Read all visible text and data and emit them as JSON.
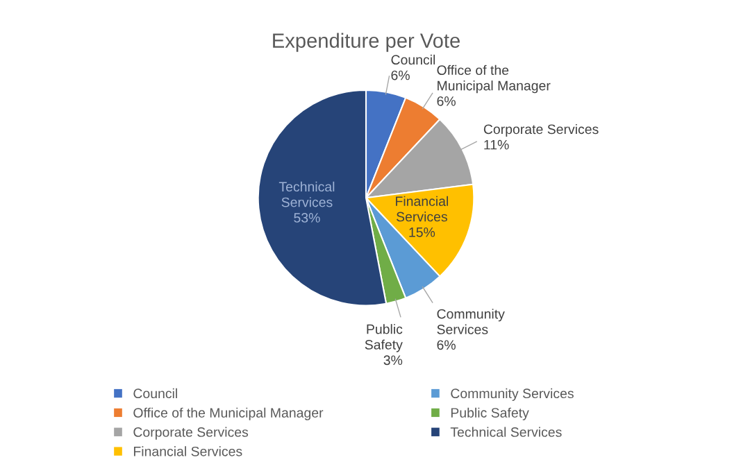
{
  "chart_data": {
    "type": "pie",
    "title": "Expenditure per Vote",
    "categories": [
      "Council",
      "Office of the Municipal Manager",
      "Corporate Services",
      "Financial Services",
      "Community Services",
      "Public Safety",
      "Technical Services"
    ],
    "values": [
      6,
      6,
      11,
      15,
      6,
      3,
      53
    ],
    "colors": [
      "#4472c4",
      "#ed7d31",
      "#a5a5a5",
      "#ffc000",
      "#5b9bd5",
      "#70ad47",
      "#264478"
    ],
    "value_labels": [
      "6%",
      "6%",
      "11%",
      "15%",
      "6%",
      "3%",
      "53%"
    ],
    "legend": "bottom"
  }
}
